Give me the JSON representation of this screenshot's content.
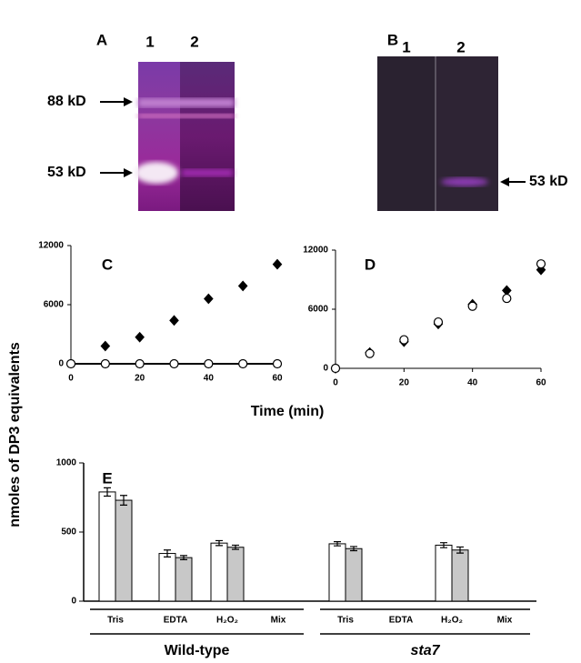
{
  "gels": [
    {
      "label": "A",
      "lanes": [
        "1",
        "2"
      ],
      "markers": [
        "88 kD",
        "53 kD"
      ]
    },
    {
      "label": "B",
      "lanes": [
        "1",
        "2"
      ],
      "markers": [
        "53 kD"
      ]
    }
  ],
  "figure": {
    "y_label": "nmoles of DP3 equivalents",
    "x_label": "Time (min)"
  },
  "chart_data": [
    {
      "type": "scatter",
      "label": "C",
      "x": [
        0,
        10,
        20,
        30,
        40,
        50,
        60
      ],
      "xlim": [
        0,
        60
      ],
      "xticks": [
        0,
        20,
        40,
        60
      ],
      "ylim": [
        0,
        12000
      ],
      "yticks": [
        0,
        6000,
        12000
      ],
      "series": [
        {
          "marker": "diamond",
          "color": "#000000",
          "values": [
            null,
            1800,
            2700,
            4400,
            6600,
            7900,
            10100
          ]
        },
        {
          "marker": "circle",
          "color": "#ffffff",
          "values": [
            0,
            0,
            0,
            0,
            0,
            0,
            0
          ]
        }
      ]
    },
    {
      "type": "scatter",
      "label": "D",
      "x": [
        0,
        10,
        20,
        30,
        40,
        50,
        60
      ],
      "xlim": [
        0,
        60
      ],
      "xticks": [
        0,
        20,
        40,
        60
      ],
      "ylim": [
        0,
        12000
      ],
      "yticks": [
        0,
        6000,
        12000
      ],
      "series": [
        {
          "marker": "diamond",
          "color": "#000000",
          "values": [
            0,
            1600,
            2700,
            4500,
            6500,
            7900,
            10000
          ]
        },
        {
          "marker": "circle",
          "color": "#ffffff",
          "values": [
            0,
            1500,
            2900,
            4700,
            6300,
            7100,
            10600
          ]
        }
      ]
    },
    {
      "type": "bar",
      "label": "E",
      "categories": [
        "Tris",
        "EDTA",
        "H₂O₂",
        "Mix",
        "Tris",
        "EDTA",
        "H₂O₂",
        "Mix"
      ],
      "groups": [
        "Wild-type",
        "sta7"
      ],
      "ylim": [
        0,
        1000
      ],
      "yticks": [
        0,
        500,
        1000
      ],
      "series": [
        {
          "color": "#ffffff",
          "values": [
            790,
            345,
            420,
            null,
            415,
            null,
            405,
            null
          ],
          "errors": [
            30,
            25,
            18,
            null,
            15,
            null,
            18,
            null
          ]
        },
        {
          "color": "#c8c8c8",
          "values": [
            730,
            315,
            390,
            null,
            380,
            null,
            370,
            null
          ],
          "errors": [
            35,
            15,
            15,
            null,
            15,
            null,
            22,
            null
          ]
        }
      ]
    }
  ]
}
